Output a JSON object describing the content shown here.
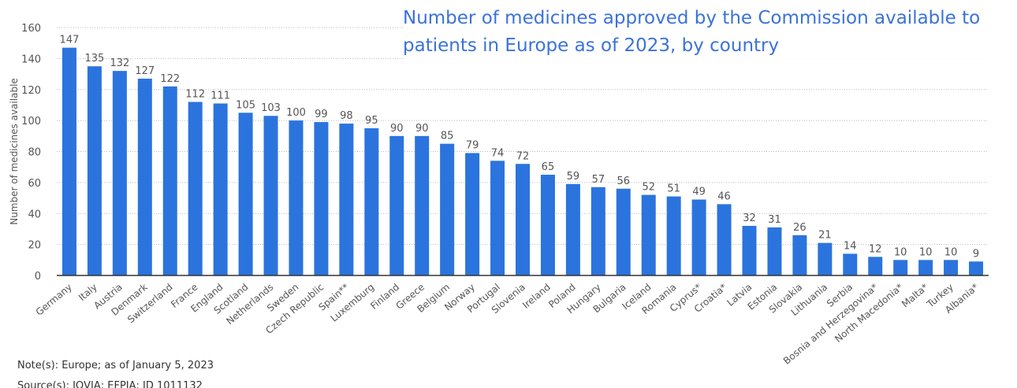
{
  "chart_data": {
    "type": "bar",
    "title": "Number of medicines approved by the Commission available to patients in Europe as of 2023, by country",
    "y_label": "Number of medicines available",
    "note": "Note(s): Europe; as of January 5, 2023",
    "source": "Source(s): IQVIA; EFPIA; ID 1011132",
    "categories": [
      "Germany",
      "Italy",
      "Austria",
      "Denmark",
      "Switzerland",
      "France",
      "England",
      "Scotland",
      "Netherlands",
      "Sweden",
      "Czech Republic",
      "Spain**",
      "Luxemburg",
      "Finland",
      "Greece",
      "Belgium",
      "Norway",
      "Portugal",
      "Slovenia",
      "Ireland",
      "Poland",
      "Hungary",
      "Bulgaria",
      "Iceland",
      "Romania",
      "Cyprus*",
      "Croatia*",
      "Latvia",
      "Estonia",
      "Slovakia",
      "Lithuania",
      "Serbia",
      "Bosnia and Herzegovina*",
      "North Macedonia*",
      "Malta*",
      "Turkey",
      "Albania*"
    ],
    "values": [
      147,
      135,
      132,
      127,
      122,
      112,
      111,
      105,
      103,
      100,
      99,
      98,
      95,
      90,
      90,
      85,
      79,
      74,
      72,
      65,
      59,
      57,
      56,
      52,
      51,
      49,
      46,
      32,
      31,
      26,
      21,
      14,
      12,
      10,
      10,
      10,
      9
    ],
    "color": "#2b74dd",
    "ylim": [
      0,
      160
    ],
    "yticks": [
      0,
      20,
      40,
      60,
      80,
      100,
      120,
      140,
      160
    ],
    "grid": true
  }
}
